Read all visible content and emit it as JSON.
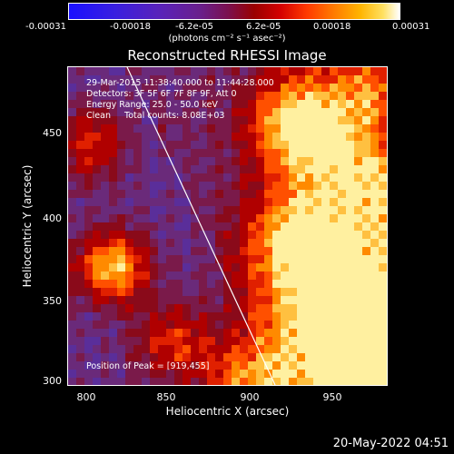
{
  "colorbar": {
    "ticks": [
      "-0.00031",
      "-0.00018",
      "-6.2e-05",
      "6.2e-05",
      "0.00018",
      "0.00031"
    ],
    "units": "(photons cm⁻² s⁻¹ asec⁻²)"
  },
  "title": "Reconstructed RHESSI Image",
  "annotations": {
    "time_range": "29-Mar-2015 11:38:40.000 to 11:44:28.000",
    "detectors": "Detectors: 3F 5F 6F 7F 8F 9F, Att 0",
    "energy_range": "Energy Range: 25.0 - 50.0 keV",
    "algorithm": "Clean     Total counts: 8.08E+03",
    "peak_position": "Position of Peak = [919,455]"
  },
  "axes": {
    "xlabel": "Heliocentric X (arcsec)",
    "ylabel": "Heliocentric Y (arcsec)",
    "xticks": [
      "800",
      "850",
      "900",
      "950"
    ],
    "yticks": [
      "450",
      "400",
      "350",
      "300"
    ]
  },
  "timestamp": "20-May-2022 04:51",
  "colors": {
    "limb_line": "#ffffff",
    "background": "#000000"
  }
}
